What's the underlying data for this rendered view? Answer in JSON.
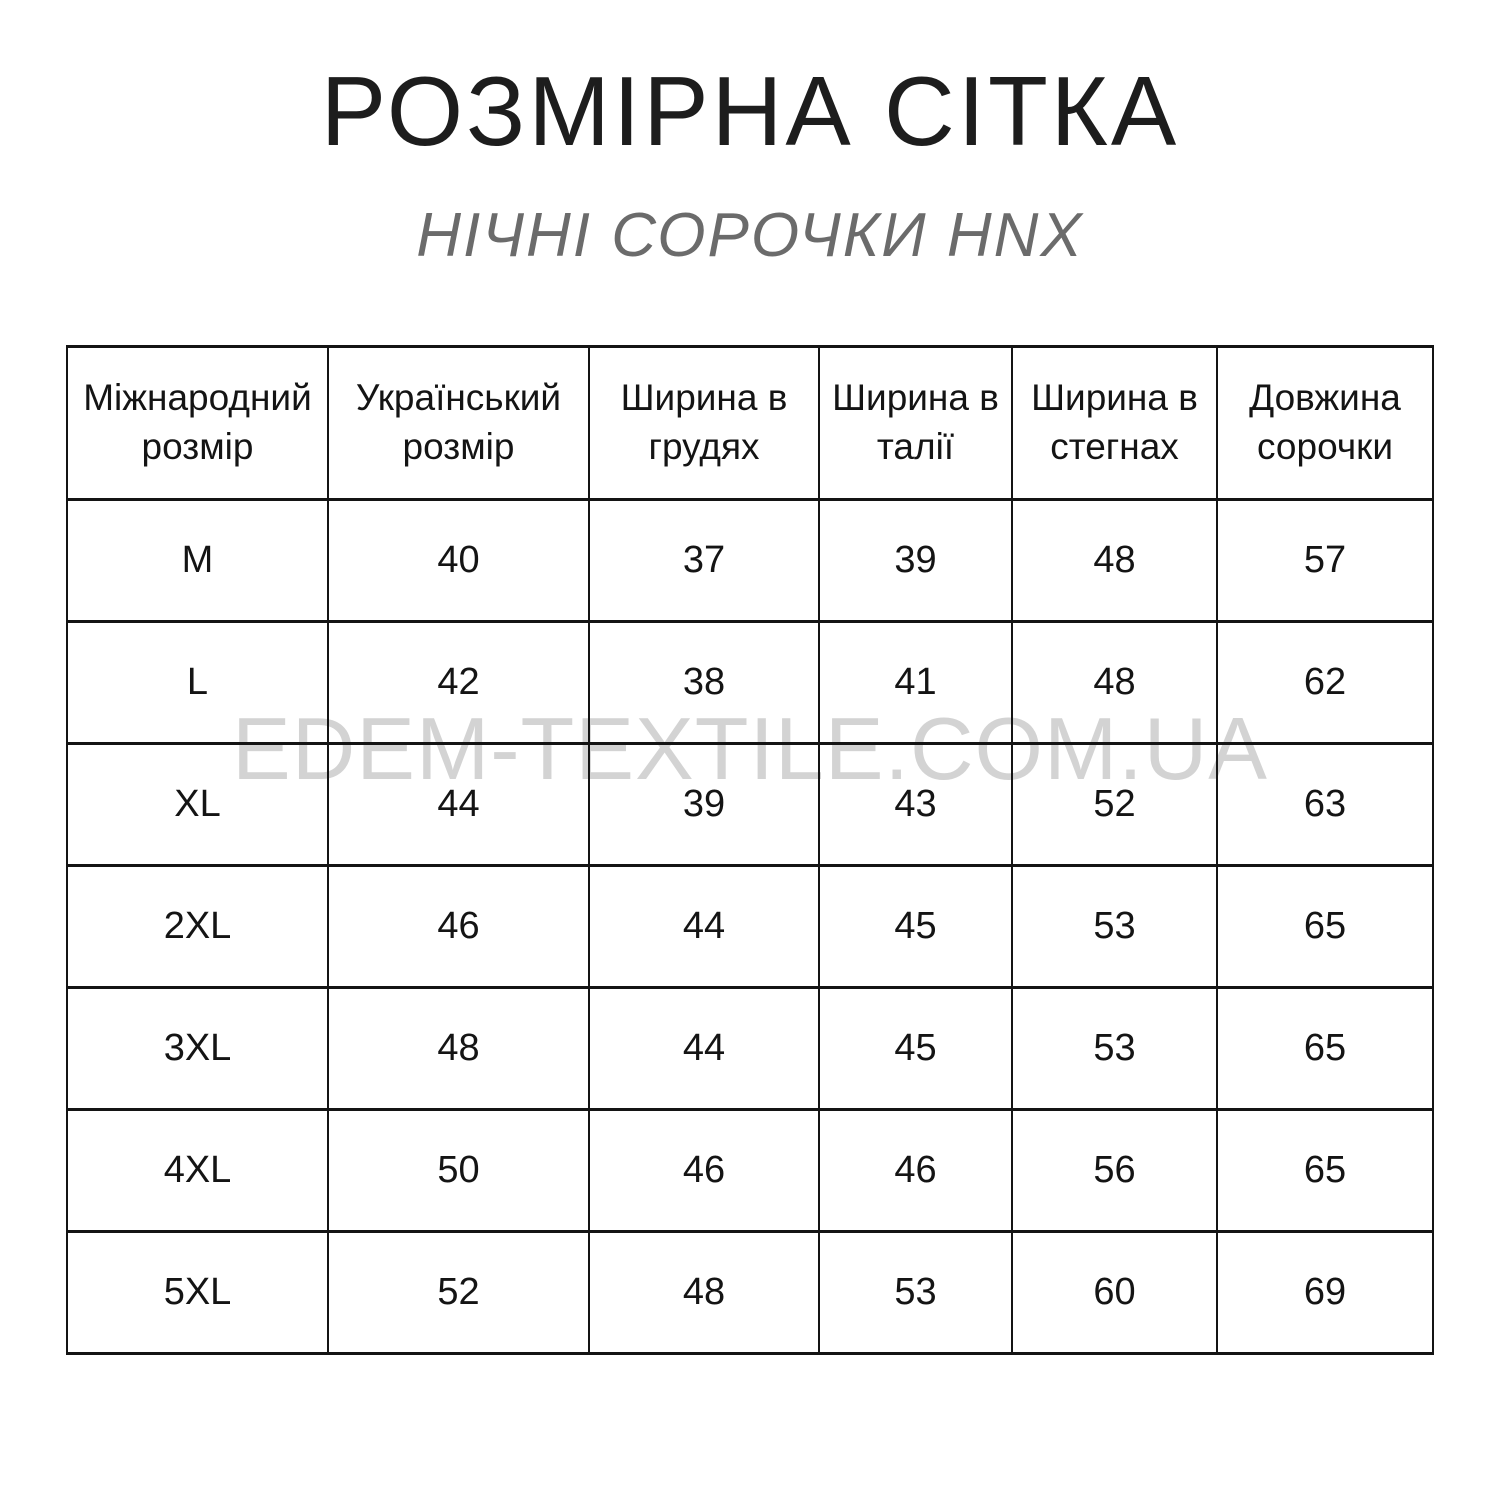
{
  "page": {
    "title": "РОЗМІРНА СІТКА",
    "subtitle": "НІЧНІ СОРОЧКИ HNX",
    "watermark": "EDEM-TEXTILE.COM.UA",
    "colors": {
      "background": "#ffffff",
      "title_text": "#1d1d1d",
      "subtitle_text": "#6b6b6b",
      "watermark_text": "#d3d3d3",
      "table_border": "#141414",
      "table_text": "#141414"
    }
  },
  "chart_data": {
    "type": "table",
    "title": "РОЗМІРНА СІТКА",
    "subtitle": "НІЧНІ СОРОЧКИ HNX",
    "columns": [
      "Міжнародний розмір",
      "Український розмір",
      "Ширина в грудях",
      "Ширина в талії",
      "Ширина в стегнах",
      "Довжина сорочки"
    ],
    "rows": [
      [
        "M",
        "40",
        "37",
        "39",
        "48",
        "57"
      ],
      [
        "L",
        "42",
        "38",
        "41",
        "48",
        "62"
      ],
      [
        "XL",
        "44",
        "39",
        "43",
        "52",
        "63"
      ],
      [
        "2XL",
        "46",
        "44",
        "45",
        "53",
        "65"
      ],
      [
        "3XL",
        "48",
        "44",
        "45",
        "53",
        "65"
      ],
      [
        "4XL",
        "50",
        "46",
        "46",
        "56",
        "65"
      ],
      [
        "5XL",
        "52",
        "48",
        "53",
        "60",
        "69"
      ]
    ]
  }
}
